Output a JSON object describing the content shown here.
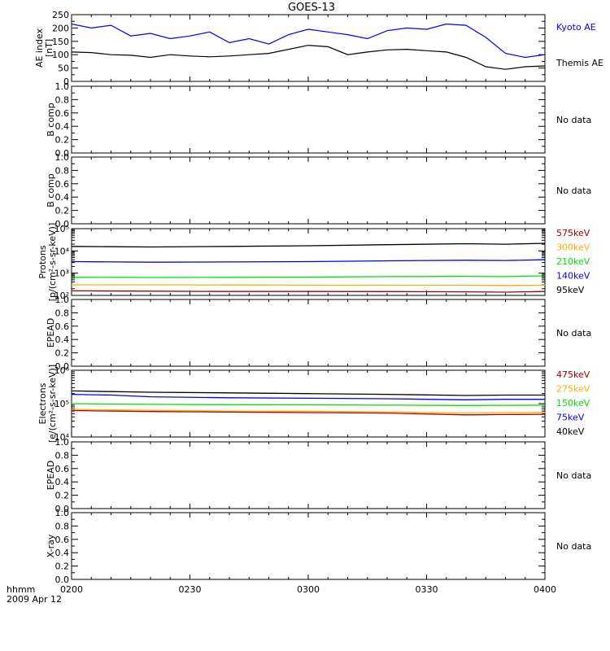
{
  "title": "GOES-13",
  "time_axis": {
    "label": "hhmm",
    "date": "2009 Apr 12",
    "ticks": [
      "0200",
      "0230",
      "0300",
      "0330",
      "0400"
    ],
    "range_minutes": [
      0,
      120
    ]
  },
  "colors": {
    "frame": "#000000",
    "black": "#000000",
    "blue": "#0000ff",
    "green": "#00e000",
    "orange": "#ffb000",
    "darkred": "#a00000"
  },
  "chart_data": [
    {
      "type": "line",
      "panel": "ae",
      "ylabel": [
        "AE index",
        "[nT]"
      ],
      "ylim": [
        0,
        250
      ],
      "yticks": [
        "0",
        "50",
        "100",
        "150",
        "200",
        "250"
      ],
      "x": [
        0,
        5,
        10,
        15,
        20,
        25,
        30,
        35,
        40,
        45,
        50,
        55,
        60,
        65,
        70,
        75,
        80,
        85,
        90,
        95,
        100,
        105,
        110,
        115,
        120
      ],
      "series": [
        {
          "name": "Kyoto AE",
          "color": "blue",
          "values": [
            215,
            200,
            210,
            170,
            180,
            160,
            170,
            185,
            145,
            160,
            140,
            175,
            195,
            185,
            175,
            160,
            190,
            200,
            195,
            215,
            210,
            165,
            105,
            90,
            100
          ]
        },
        {
          "name": "Themis AE",
          "color": "black",
          "values": [
            110,
            108,
            100,
            98,
            90,
            100,
            95,
            92,
            95,
            100,
            105,
            120,
            135,
            130,
            100,
            110,
            118,
            120,
            115,
            110,
            90,
            55,
            45,
            55,
            58
          ]
        }
      ]
    },
    {
      "type": "line",
      "panel": "empty",
      "ylabel": [
        "B comp"
      ],
      "ylim": [
        0,
        1
      ],
      "yticks": [
        "0.0",
        "0.2",
        "0.4",
        "0.6",
        "0.8",
        "1.0"
      ],
      "note": "No data"
    },
    {
      "type": "line",
      "panel": "empty",
      "ylabel": [
        "B comp"
      ],
      "ylim": [
        0,
        1
      ],
      "yticks": [
        "0.0",
        "0.2",
        "0.4",
        "0.6",
        "0.8",
        "1.0"
      ],
      "note": "No data"
    },
    {
      "type": "line",
      "panel": "log",
      "ylabel": [
        "Protons",
        "[p/(cm²-s-sr-keV)]"
      ],
      "ylim": [
        100,
        100000
      ],
      "yscale": "log",
      "ytick_labels": [
        "10²",
        "10³",
        "10⁴",
        "10⁵"
      ],
      "x": [
        0,
        20,
        40,
        60,
        80,
        100,
        110,
        120
      ],
      "series": [
        {
          "name": "575keV",
          "color": "darkred",
          "values": [
            160,
            155,
            150,
            150,
            148,
            145,
            140,
            150
          ]
        },
        {
          "name": "300keV",
          "color": "orange",
          "values": [
            300,
            300,
            295,
            290,
            290,
            290,
            280,
            290
          ]
        },
        {
          "name": "210keV",
          "color": "green",
          "values": [
            650,
            640,
            650,
            660,
            700,
            720,
            700,
            760
          ]
        },
        {
          "name": "140keV",
          "color": "blue",
          "values": [
            3300,
            3100,
            3200,
            3300,
            3600,
            3800,
            3700,
            4000
          ]
        },
        {
          "name": "95keV",
          "color": "black",
          "values": [
            16000,
            15000,
            16000,
            17000,
            19000,
            21000,
            20000,
            22000
          ]
        }
      ]
    },
    {
      "type": "line",
      "panel": "empty",
      "ylabel": [
        "EPEAD"
      ],
      "ylim": [
        0,
        1
      ],
      "yticks": [
        "0.0",
        "0.2",
        "0.4",
        "0.6",
        "0.8",
        "1.0"
      ],
      "note": "No data"
    },
    {
      "type": "line",
      "panel": "log",
      "ylabel": [
        "Electrons",
        "[e/(cm²-s-sr-keV)]"
      ],
      "ylim": [
        10000,
        1000000
      ],
      "yscale": "log",
      "ytick_labels": [
        "10⁴",
        "10⁵",
        "10⁶"
      ],
      "x": [
        0,
        10,
        20,
        40,
        60,
        80,
        100,
        110,
        120
      ],
      "series": [
        {
          "name": "475keV",
          "color": "darkred",
          "values": [
            62000,
            60000,
            58000,
            56000,
            54000,
            52000,
            46000,
            47000,
            48000
          ]
        },
        {
          "name": "275keV",
          "color": "orange",
          "values": [
            67000,
            65000,
            63000,
            60000,
            59000,
            57000,
            52000,
            54000,
            55000
          ]
        },
        {
          "name": "150keV",
          "color": "green",
          "values": [
            100000,
            97000,
            95000,
            93000,
            92000,
            90000,
            88000,
            89000,
            90000
          ]
        },
        {
          "name": "75keV",
          "color": "blue",
          "values": [
            190000,
            180000,
            160000,
            150000,
            145000,
            140000,
            130000,
            135000,
            135000
          ]
        },
        {
          "name": "40keV",
          "color": "black",
          "values": [
            240000,
            230000,
            220000,
            210000,
            200000,
            190000,
            175000,
            180000,
            180000
          ]
        }
      ]
    },
    {
      "type": "line",
      "panel": "empty",
      "ylabel": [
        "EPEAD"
      ],
      "ylim": [
        0,
        1
      ],
      "yticks": [
        "0.0",
        "0.2",
        "0.4",
        "0.6",
        "0.8",
        "1.0"
      ],
      "note": "No data"
    },
    {
      "type": "line",
      "panel": "empty",
      "ylabel": [
        "X-ray"
      ],
      "ylim": [
        0,
        1
      ],
      "yticks": [
        "0.0",
        "0.2",
        "0.4",
        "0.6",
        "0.8",
        "1.0"
      ],
      "note": "No data"
    }
  ]
}
